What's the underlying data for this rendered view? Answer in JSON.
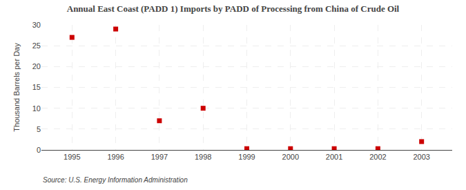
{
  "chart_data": {
    "type": "scatter",
    "title": "Annual East Coast (PADD 1) Imports by PADD of Processing from China of Crude Oil",
    "ylabel": "Thousand Barrels per Day",
    "annotations": [
      "Source: U.S. Energy Information Administration"
    ],
    "x": [
      1995,
      1996,
      1997,
      1998,
      1999,
      2000,
      2001,
      2002,
      2003
    ],
    "values": [
      27,
      29,
      7,
      10,
      0.3,
      0.3,
      0.3,
      0.3,
      2
    ],
    "color": "#cc0000",
    "marker": "square",
    "xlim": [
      1994.3,
      2003.7
    ],
    "xticks": [
      1995,
      1996,
      1997,
      1998,
      1999,
      2000,
      2001,
      2002,
      2003
    ],
    "ylim": [
      0,
      30
    ],
    "yticks": [
      0,
      5,
      10,
      15,
      20,
      25,
      30
    ],
    "grid": true
  }
}
